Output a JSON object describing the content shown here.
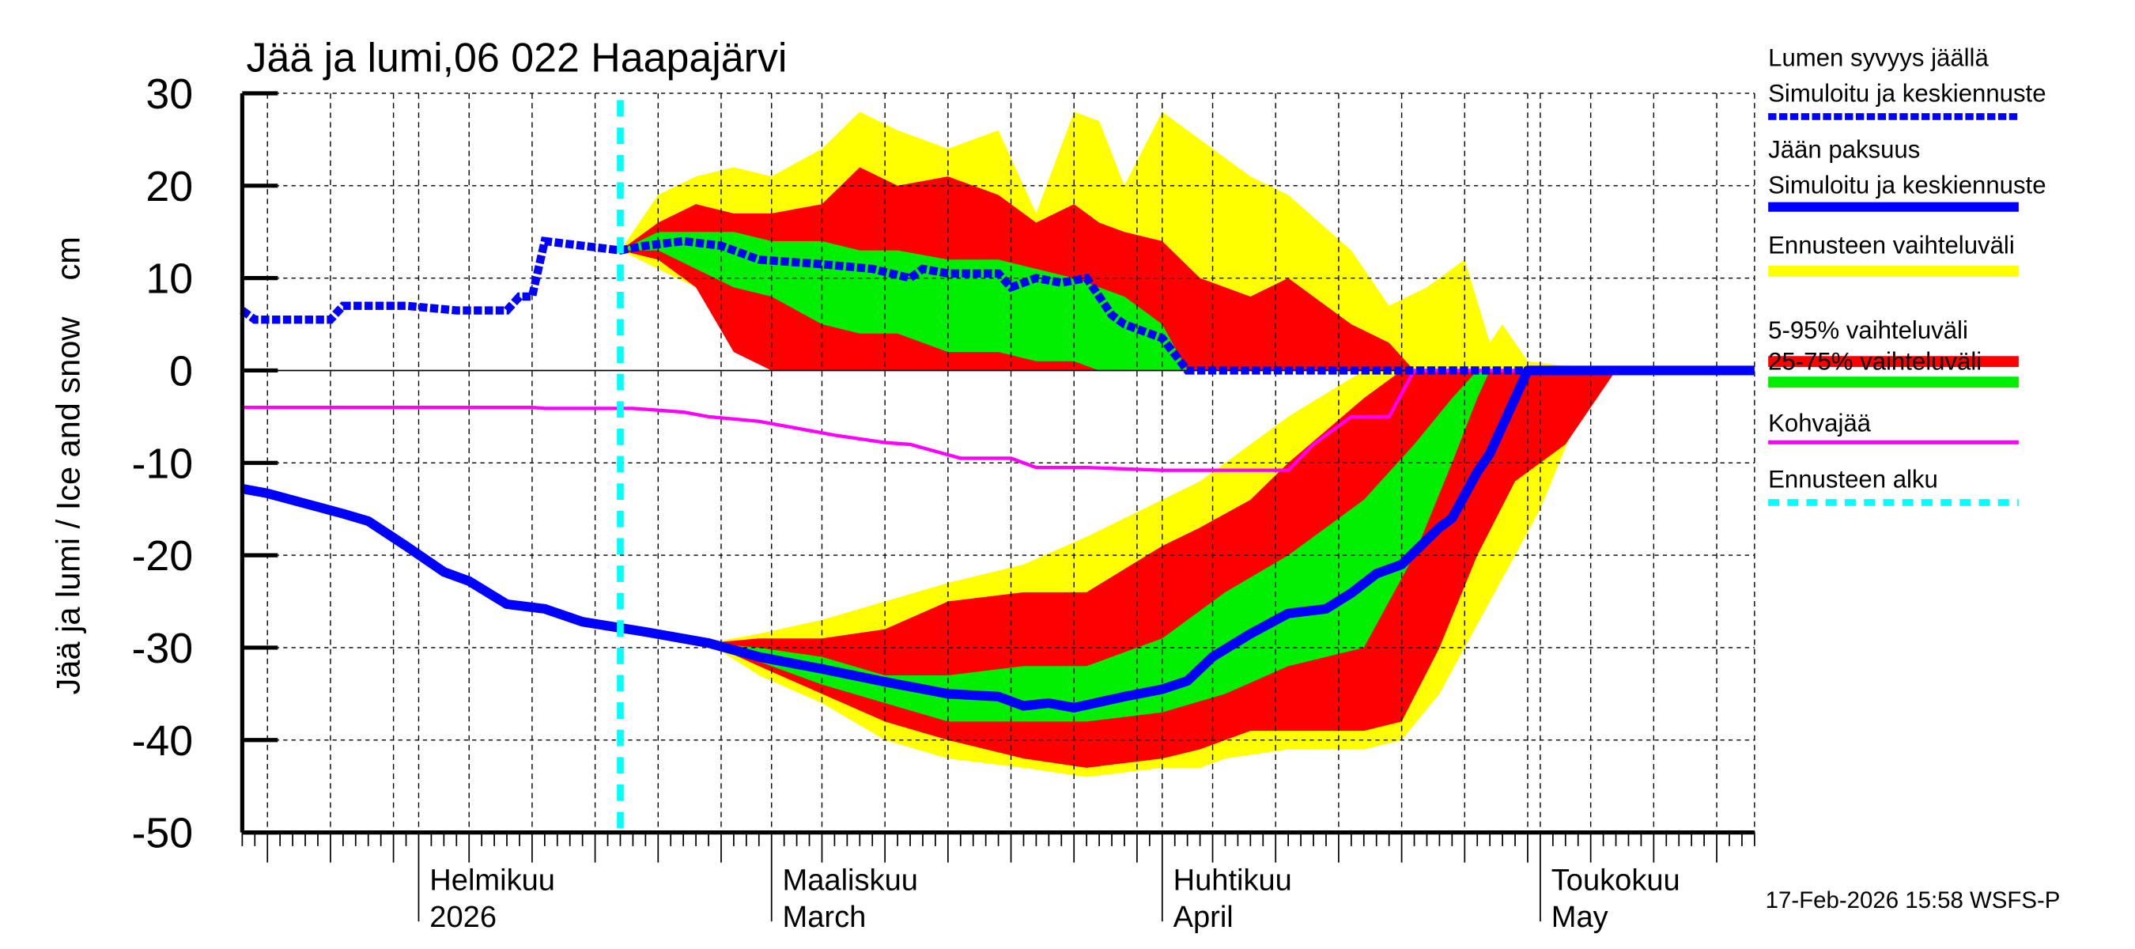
{
  "chart_data": {
    "type": "area",
    "title": "Jää ja lumi,06 022 Haapajärvi",
    "ylabel": "Jää ja lumi / Ice and snow    cm",
    "ylim": [
      -50,
      30
    ],
    "yticks": [
      30,
      20,
      10,
      0,
      -10,
      -20,
      -30,
      -40,
      -50
    ],
    "xlim": [
      "2026-01-18",
      "2026-05-18"
    ],
    "grid": true,
    "legend_position": "right",
    "month_labels": [
      {
        "date": "2026-02-01",
        "fi": "Helmikuu",
        "en": "2026"
      },
      {
        "date": "2026-03-01",
        "fi": "Maaliskuu",
        "en": "March"
      },
      {
        "date": "2026-04-01",
        "fi": "Huhtikuu",
        "en": "April"
      },
      {
        "date": "2026-05-01",
        "fi": "Toukokuu",
        "en": "May"
      }
    ],
    "forecast_start": "2026-02-17",
    "footer": "17-Feb-2026 15:58 WSFS-P",
    "legend": [
      {
        "line1": "Lumen syvyys jäällä",
        "line2": "Simuloitu ja keskiennuste",
        "color": "#0000ff",
        "style": "dotted"
      },
      {
        "line1": "Jään paksuus",
        "line2": "Simuloitu ja keskiennuste",
        "color": "#0000ff",
        "style": "solid"
      },
      {
        "line1": "Ennusteen vaihteluväli",
        "color": "#ffff00",
        "style": "band"
      },
      {
        "line1": "5-95% vaihteluväli",
        "color": "#ff0000",
        "style": "band"
      },
      {
        "line1": "25-75% vaihteluväli",
        "color": "#00ee00",
        "style": "band"
      },
      {
        "line1": "Kohvajää",
        "color": "#ff00ff",
        "style": "thin"
      },
      {
        "line1": "Ennusteen alku",
        "color": "#00ffff",
        "style": "dashed"
      }
    ],
    "bands": {
      "snow_range": [
        [
          "2026-02-17",
          13,
          13
        ],
        [
          "2026-02-20",
          11,
          19
        ],
        [
          "2026-02-23",
          9,
          21
        ],
        [
          "2026-02-26",
          3,
          22
        ],
        [
          "2026-03-01",
          0,
          21
        ],
        [
          "2026-03-05",
          0,
          24
        ],
        [
          "2026-03-08",
          0,
          28
        ],
        [
          "2026-03-11",
          0,
          26
        ],
        [
          "2026-03-15",
          0,
          24
        ],
        [
          "2026-03-19",
          0,
          26
        ],
        [
          "2026-03-22",
          0,
          17
        ],
        [
          "2026-03-25",
          0,
          28
        ],
        [
          "2026-03-27",
          0,
          27
        ],
        [
          "2026-03-29",
          0,
          20
        ],
        [
          "2026-04-01",
          0,
          28
        ],
        [
          "2026-04-04",
          0,
          25
        ],
        [
          "2026-04-08",
          0,
          21
        ],
        [
          "2026-04-11",
          0,
          19
        ],
        [
          "2026-04-16",
          0,
          13
        ],
        [
          "2026-04-19",
          0,
          7
        ],
        [
          "2026-04-22",
          0,
          9
        ],
        [
          "2026-04-25",
          0,
          12
        ],
        [
          "2026-04-27",
          0,
          3
        ],
        [
          "2026-04-28",
          0,
          5
        ],
        [
          "2026-04-30",
          0,
          1
        ],
        [
          "2026-05-03",
          0,
          0.5
        ],
        [
          "2026-05-04",
          0,
          0
        ]
      ],
      "snow_5_95": [
        [
          "2026-02-17",
          13,
          13
        ],
        [
          "2026-02-20",
          12,
          16
        ],
        [
          "2026-02-23",
          9,
          18
        ],
        [
          "2026-02-26",
          2,
          17
        ],
        [
          "2026-03-01",
          0,
          17
        ],
        [
          "2026-03-05",
          0,
          18
        ],
        [
          "2026-03-08",
          0,
          22
        ],
        [
          "2026-03-11",
          0,
          20
        ],
        [
          "2026-03-15",
          0,
          21
        ],
        [
          "2026-03-19",
          0,
          19
        ],
        [
          "2026-03-22",
          0,
          16
        ],
        [
          "2026-03-25",
          0,
          18
        ],
        [
          "2026-03-27",
          0,
          16
        ],
        [
          "2026-03-29",
          0,
          15
        ],
        [
          "2026-04-01",
          0,
          14
        ],
        [
          "2026-04-04",
          0,
          10
        ],
        [
          "2026-04-08",
          0,
          8
        ],
        [
          "2026-04-11",
          0,
          10
        ],
        [
          "2026-04-16",
          0,
          5
        ],
        [
          "2026-04-19",
          0,
          3
        ],
        [
          "2026-04-21",
          0,
          0
        ]
      ],
      "snow_25_75": [
        [
          "2026-02-17",
          13,
          13
        ],
        [
          "2026-02-20",
          13,
          15
        ],
        [
          "2026-02-23",
          11,
          15
        ],
        [
          "2026-02-26",
          9,
          15
        ],
        [
          "2026-03-01",
          8,
          14
        ],
        [
          "2026-03-05",
          5,
          14
        ],
        [
          "2026-03-08",
          4,
          13
        ],
        [
          "2026-03-11",
          4,
          13
        ],
        [
          "2026-03-15",
          2,
          12
        ],
        [
          "2026-03-19",
          2,
          12
        ],
        [
          "2026-03-22",
          1,
          11
        ],
        [
          "2026-03-25",
          1,
          10
        ],
        [
          "2026-03-27",
          0,
          9
        ],
        [
          "2026-03-29",
          0,
          8
        ],
        [
          "2026-04-01",
          0,
          5
        ],
        [
          "2026-04-03",
          0,
          0
        ]
      ],
      "ice_range": [
        [
          "2026-02-24",
          -29.5,
          -29.5
        ],
        [
          "2026-02-28",
          -33,
          -28.5
        ],
        [
          "2026-03-05",
          -36,
          -27
        ],
        [
          "2026-03-10",
          -40,
          -25
        ],
        [
          "2026-03-15",
          -42,
          -23
        ],
        [
          "2026-03-21",
          -43,
          -21
        ],
        [
          "2026-03-26",
          -44,
          -18
        ],
        [
          "2026-04-01",
          -43,
          -14
        ],
        [
          "2026-04-04",
          -43,
          -12
        ],
        [
          "2026-04-06",
          -42,
          -10
        ],
        [
          "2026-04-11",
          -41,
          -5
        ],
        [
          "2026-04-17",
          -41,
          0
        ],
        [
          "2026-04-20",
          -40,
          0
        ],
        [
          "2026-04-23",
          -35,
          0
        ],
        [
          "2026-04-27",
          -25,
          0
        ],
        [
          "2026-05-01",
          -15,
          0
        ],
        [
          "2026-05-04",
          -5,
          0
        ],
        [
          "2026-05-07",
          0,
          0
        ]
      ],
      "ice_5_95": [
        [
          "2026-02-24",
          -29.5,
          -29.5
        ],
        [
          "2026-02-28",
          -32,
          -29
        ],
        [
          "2026-03-05",
          -35,
          -29
        ],
        [
          "2026-03-10",
          -38,
          -28
        ],
        [
          "2026-03-15",
          -40,
          -25
        ],
        [
          "2026-03-21",
          -42,
          -24
        ],
        [
          "2026-03-26",
          -43,
          -24
        ],
        [
          "2026-04-01",
          -42,
          -19
        ],
        [
          "2026-04-04",
          -41,
          -17
        ],
        [
          "2026-04-08",
          -39,
          -14
        ],
        [
          "2026-04-11",
          -39,
          -10
        ],
        [
          "2026-04-17",
          -39,
          -3
        ],
        [
          "2026-04-20",
          -38,
          0
        ],
        [
          "2026-04-23",
          -30,
          0
        ],
        [
          "2026-04-26",
          -20,
          0
        ],
        [
          "2026-04-29",
          -12,
          0
        ],
        [
          "2026-05-03",
          -8,
          0
        ],
        [
          "2026-05-07",
          0,
          0
        ]
      ],
      "ice_25_75": [
        [
          "2026-02-24",
          -29.5,
          -29.5
        ],
        [
          "2026-02-28",
          -31.5,
          -30
        ],
        [
          "2026-03-05",
          -34,
          -31
        ],
        [
          "2026-03-10",
          -36,
          -33
        ],
        [
          "2026-03-15",
          -38,
          -33
        ],
        [
          "2026-03-21",
          -38,
          -32
        ],
        [
          "2026-03-26",
          -38,
          -32
        ],
        [
          "2026-04-01",
          -37,
          -29
        ],
        [
          "2026-04-06",
          -35,
          -24
        ],
        [
          "2026-04-11",
          -32,
          -20
        ],
        [
          "2026-04-17",
          -30,
          -14
        ],
        [
          "2026-04-21",
          -20,
          -8
        ],
        [
          "2026-04-24",
          -10,
          -3
        ],
        [
          "2026-04-26",
          -3,
          0
        ],
        [
          "2026-04-27",
          0,
          0
        ]
      ]
    },
    "series": [
      {
        "name": "Lumen syvyys jäällä",
        "points": [
          [
            "2026-01-18",
            6.5
          ],
          [
            "2026-01-19",
            5.5
          ],
          [
            "2026-01-25",
            5.5
          ],
          [
            "2026-01-26",
            7
          ],
          [
            "2026-01-31",
            7
          ],
          [
            "2026-02-04",
            6.5
          ],
          [
            "2026-02-08",
            6.5
          ],
          [
            "2026-02-09",
            8
          ],
          [
            "2026-02-10",
            8
          ],
          [
            "2026-02-11",
            14
          ],
          [
            "2026-02-14",
            13.5
          ],
          [
            "2026-02-17",
            13
          ],
          [
            "2026-02-19",
            13.5
          ],
          [
            "2026-02-22",
            14
          ],
          [
            "2026-02-25",
            13.5
          ],
          [
            "2026-02-28",
            12
          ],
          [
            "2026-03-05",
            11.5
          ],
          [
            "2026-03-09",
            11
          ],
          [
            "2026-03-12",
            10
          ],
          [
            "2026-03-13",
            11
          ],
          [
            "2026-03-15",
            10.5
          ],
          [
            "2026-03-19",
            10.5
          ],
          [
            "2026-03-20",
            9
          ],
          [
            "2026-03-22",
            10
          ],
          [
            "2026-03-24",
            9.5
          ],
          [
            "2026-03-26",
            10
          ],
          [
            "2026-03-28",
            6
          ],
          [
            "2026-03-29",
            5
          ],
          [
            "2026-03-31",
            4
          ],
          [
            "2026-04-01",
            3.5
          ],
          [
            "2026-04-03",
            0
          ],
          [
            "2026-05-18",
            0
          ]
        ]
      },
      {
        "name": "Jään paksuus",
        "points": [
          [
            "2026-01-18",
            -12.8
          ],
          [
            "2026-01-20",
            -13.3
          ],
          [
            "2026-01-26",
            -15.5
          ],
          [
            "2026-01-28",
            -16.3
          ],
          [
            "2026-01-31",
            -19
          ],
          [
            "2026-02-03",
            -21.8
          ],
          [
            "2026-02-05",
            -22.8
          ],
          [
            "2026-02-08",
            -25.3
          ],
          [
            "2026-02-11",
            -25.8
          ],
          [
            "2026-02-14",
            -27.2
          ],
          [
            "2026-02-19",
            -28.3
          ],
          [
            "2026-02-24",
            -29.5
          ],
          [
            "2026-02-28",
            -31
          ],
          [
            "2026-03-05",
            -32.3
          ],
          [
            "2026-03-10",
            -33.7
          ],
          [
            "2026-03-15",
            -35
          ],
          [
            "2026-03-19",
            -35.3
          ],
          [
            "2026-03-21",
            -36.3
          ],
          [
            "2026-03-23",
            -36
          ],
          [
            "2026-03-25",
            -36.5
          ],
          [
            "2026-03-29",
            -35.3
          ],
          [
            "2026-04-01",
            -34.5
          ],
          [
            "2026-04-03",
            -33.6
          ],
          [
            "2026-04-05",
            -31
          ],
          [
            "2026-04-08",
            -28.5
          ],
          [
            "2026-04-11",
            -26.3
          ],
          [
            "2026-04-14",
            -25.8
          ],
          [
            "2026-04-16",
            -24.1
          ],
          [
            "2026-04-18",
            -22
          ],
          [
            "2026-04-20",
            -21
          ],
          [
            "2026-04-23",
            -17
          ],
          [
            "2026-04-24",
            -16
          ],
          [
            "2026-04-26",
            -11
          ],
          [
            "2026-04-27",
            -9
          ],
          [
            "2026-04-29",
            -3
          ],
          [
            "2026-04-30",
            0
          ],
          [
            "2026-05-18",
            0
          ]
        ]
      },
      {
        "name": "Kohvajää",
        "points": [
          [
            "2026-01-18",
            -4
          ],
          [
            "2026-02-10",
            -4
          ],
          [
            "2026-02-11",
            -4.1
          ],
          [
            "2026-02-18",
            -4.1
          ],
          [
            "2026-02-22",
            -4.5
          ],
          [
            "2026-02-24",
            -5
          ],
          [
            "2026-02-28",
            -5.5
          ],
          [
            "2026-03-04",
            -6.5
          ],
          [
            "2026-03-06",
            -7
          ],
          [
            "2026-03-10",
            -7.8
          ],
          [
            "2026-03-12",
            -8
          ],
          [
            "2026-03-16",
            -9.5
          ],
          [
            "2026-03-20",
            -9.5
          ],
          [
            "2026-03-22",
            -10.5
          ],
          [
            "2026-03-26",
            -10.5
          ],
          [
            "2026-04-01",
            -10.8
          ],
          [
            "2026-04-11",
            -10.8
          ],
          [
            "2026-04-13",
            -8
          ],
          [
            "2026-04-15",
            -6
          ],
          [
            "2026-04-16",
            -5
          ],
          [
            "2026-04-19",
            -5
          ],
          [
            "2026-04-21",
            0
          ],
          [
            "2026-05-18",
            0
          ]
        ]
      }
    ]
  }
}
